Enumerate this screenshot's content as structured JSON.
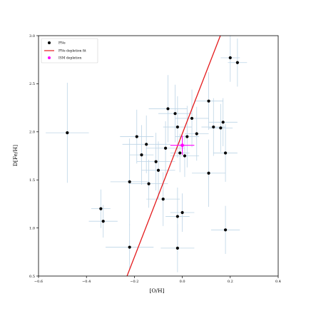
{
  "chart_data": {
    "type": "scatter",
    "xlabel": "[O/H]",
    "ylabel": "D[Fe/H]",
    "xlim": [
      -0.6,
      0.4
    ],
    "ylim": [
      0.5,
      3.0
    ],
    "xticks": [
      -0.6,
      -0.4,
      -0.2,
      0.0,
      0.2,
      0.4
    ],
    "yticks": [
      0.5,
      1.0,
      1.5,
      2.0,
      2.5,
      3.0
    ],
    "xtick_labels": [
      "−0.6",
      "−0.4",
      "−0.2",
      "0.0",
      "0.2",
      "0.4"
    ],
    "ytick_labels": [
      "0.5",
      "1.0",
      "1.5",
      "2.0",
      "2.5",
      "3.0"
    ],
    "grid": false,
    "legend_position": "top-left",
    "legend": [
      {
        "label": "PNe",
        "kind": "marker",
        "color": "#000000"
      },
      {
        "label": "PNe depletion fit",
        "kind": "line",
        "color": "#e41a1c"
      },
      {
        "label": "ISM depletion",
        "kind": "marker",
        "color": "#ff00ff"
      }
    ],
    "series": [
      {
        "name": "PNe",
        "color": "#000000",
        "errorbar_color": "#bcd4e6",
        "points": [
          {
            "x": -0.48,
            "y": 1.99,
            "xerr": 0.09,
            "yerr": 0.52
          },
          {
            "x": -0.34,
            "y": 1.2,
            "xerr": 0.04,
            "yerr": 0.2
          },
          {
            "x": -0.33,
            "y": 1.07,
            "xerr": 0.06,
            "yerr": 0.17
          },
          {
            "x": -0.22,
            "y": 1.48,
            "xerr": 0.08,
            "yerr": 0.45
          },
          {
            "x": -0.22,
            "y": 0.8,
            "xerr": 0.1,
            "yerr": 0.24
          },
          {
            "x": -0.19,
            "y": 1.95,
            "xerr": 0.07,
            "yerr": 0.28
          },
          {
            "x": -0.17,
            "y": 1.76,
            "xerr": 0.05,
            "yerr": 0.31
          },
          {
            "x": -0.15,
            "y": 1.87,
            "xerr": 0.1,
            "yerr": 0.3
          },
          {
            "x": -0.14,
            "y": 1.46,
            "xerr": 0.08,
            "yerr": 0.25
          },
          {
            "x": -0.11,
            "y": 1.69,
            "xerr": 0.08,
            "yerr": 0.3
          },
          {
            "x": -0.1,
            "y": 1.6,
            "xerr": 0.07,
            "yerr": 0.3
          },
          {
            "x": -0.08,
            "y": 1.3,
            "xerr": 0.07,
            "yerr": 0.28
          },
          {
            "x": -0.07,
            "y": 1.83,
            "xerr": 0.08,
            "yerr": 0.28
          },
          {
            "x": -0.06,
            "y": 2.24,
            "xerr": 0.08,
            "yerr": 0.35
          },
          {
            "x": -0.03,
            "y": 2.19,
            "xerr": 0.07,
            "yerr": 0.3
          },
          {
            "x": -0.02,
            "y": 2.05,
            "xerr": 0.06,
            "yerr": 0.32
          },
          {
            "x": -0.02,
            "y": 1.12,
            "xerr": 0.05,
            "yerr": 0.3
          },
          {
            "x": -0.02,
            "y": 0.79,
            "xerr": 0.07,
            "yerr": 0.25
          },
          {
            "x": -0.01,
            "y": 1.78,
            "xerr": 0.04,
            "yerr": 0.2
          },
          {
            "x": 0.0,
            "y": 1.16,
            "xerr": 0.05,
            "yerr": 0.2
          },
          {
            "x": 0.01,
            "y": 1.75,
            "xerr": 0.06,
            "yerr": 0.22
          },
          {
            "x": 0.02,
            "y": 1.95,
            "xerr": 0.05,
            "yerr": 0.32
          },
          {
            "x": 0.04,
            "y": 2.14,
            "xerr": 0.07,
            "yerr": 0.3
          },
          {
            "x": 0.06,
            "y": 1.98,
            "xerr": 0.05,
            "yerr": 0.28
          },
          {
            "x": 0.11,
            "y": 2.32,
            "xerr": 0.06,
            "yerr": 0.3
          },
          {
            "x": 0.11,
            "y": 1.57,
            "xerr": 0.07,
            "yerr": 0.35
          },
          {
            "x": 0.13,
            "y": 2.05,
            "xerr": 0.05,
            "yerr": 0.3
          },
          {
            "x": 0.16,
            "y": 2.04,
            "xerr": 0.05,
            "yerr": 0.25
          },
          {
            "x": 0.17,
            "y": 2.1,
            "xerr": 0.06,
            "yerr": 0.25
          },
          {
            "x": 0.18,
            "y": 1.78,
            "xerr": 0.05,
            "yerr": 0.3
          },
          {
            "x": 0.18,
            "y": 0.98,
            "xerr": 0.06,
            "yerr": 0.25
          },
          {
            "x": 0.2,
            "y": 2.77,
            "xerr": 0.04,
            "yerr": 0.25
          },
          {
            "x": 0.23,
            "y": 2.72,
            "xerr": 0.04,
            "yerr": 0.25
          }
        ]
      },
      {
        "name": "ISM depletion",
        "color": "#ff00ff",
        "points": [
          {
            "x": 0.0,
            "y": 1.86,
            "xerr": 0.05,
            "yerr": 0.1
          }
        ]
      }
    ],
    "fit_line": {
      "name": "PNe depletion fit",
      "color": "#e41a1c",
      "x": [
        -0.2307,
        0.1587
      ],
      "y": [
        0.5,
        3.0
      ]
    }
  }
}
